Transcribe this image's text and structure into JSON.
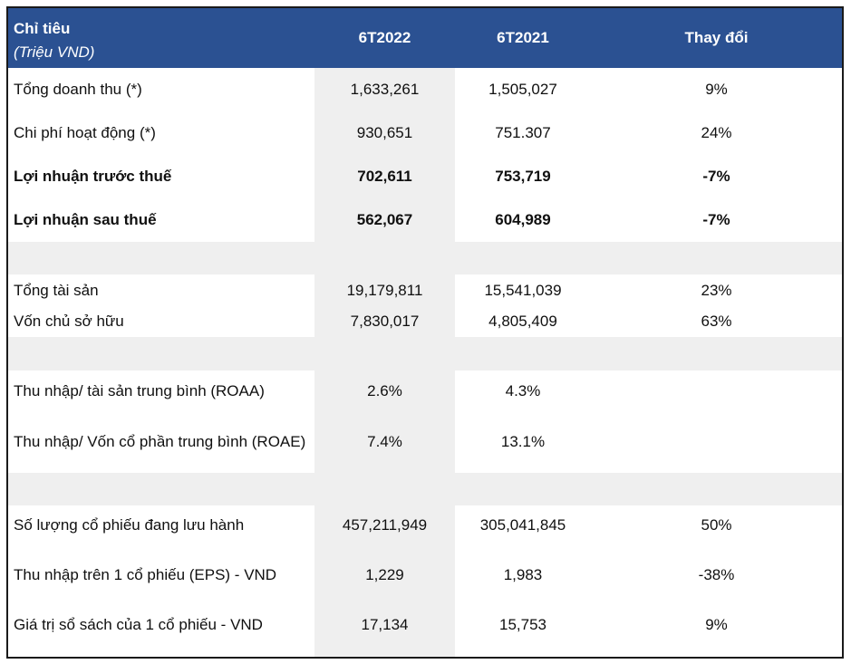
{
  "table": {
    "border_color": "#1a1a1a",
    "stripe_color": "#efefef",
    "header": {
      "bg": "#2b5192",
      "title": "Chỉ tiêu",
      "subtitle": "(Triệu VND)",
      "columns": [
        "6T2022",
        "6T2021",
        "Thay đổi"
      ]
    },
    "sections": [
      {
        "rows": [
          {
            "label": "Tổng doanh thu (*)",
            "v2022": "1,633,261",
            "v2021": "1,505,027",
            "change": "9%"
          },
          {
            "label": "Chi phí hoạt động (*)",
            "v2022": "930,651",
            "v2021": "751.307",
            "change": "24%"
          },
          {
            "label": "Lợi nhuận trước thuế",
            "v2022": "702,611",
            "v2021": "753,719",
            "change": "-7%"
          },
          {
            "label": "Lợi nhuận sau thuế",
            "v2022": "562,067",
            "v2021": "604,989",
            "change": "-7%"
          }
        ]
      },
      {
        "rows": [
          {
            "label": "Tổng tài sản",
            "v2022": "19,179,811",
            "v2021": "15,541,039",
            "change": "23%"
          },
          {
            "label": "Vốn chủ sở hữu",
            "v2022": "7,830,017",
            "v2021": "4,805,409",
            "change": "63%"
          }
        ]
      },
      {
        "rows": [
          {
            "label": "Thu nhập/ tài sản trung bình (ROAA)",
            "v2022": "2.6%",
            "v2021": "4.3%",
            "change": ""
          },
          {
            "label": "Thu nhập/ Vốn cổ phần trung bình (ROAE)",
            "v2022": "7.4%",
            "v2021": "13.1%",
            "change": ""
          }
        ]
      },
      {
        "rows": [
          {
            "label": "Số lượng cổ phiếu đang lưu hành",
            "v2022": "457,211,949",
            "v2021": "305,041,845",
            "change": "50%"
          },
          {
            "label": "Thu nhập trên 1 cổ phiếu (EPS) - VND",
            "v2022": "1,229",
            "v2021": "1,983",
            "change": "-38%"
          },
          {
            "label": "Giá trị sổ sách của 1 cổ phiếu - VND",
            "v2022": "17,134",
            "v2021": "15,753",
            "change": "9%"
          }
        ]
      }
    ]
  }
}
